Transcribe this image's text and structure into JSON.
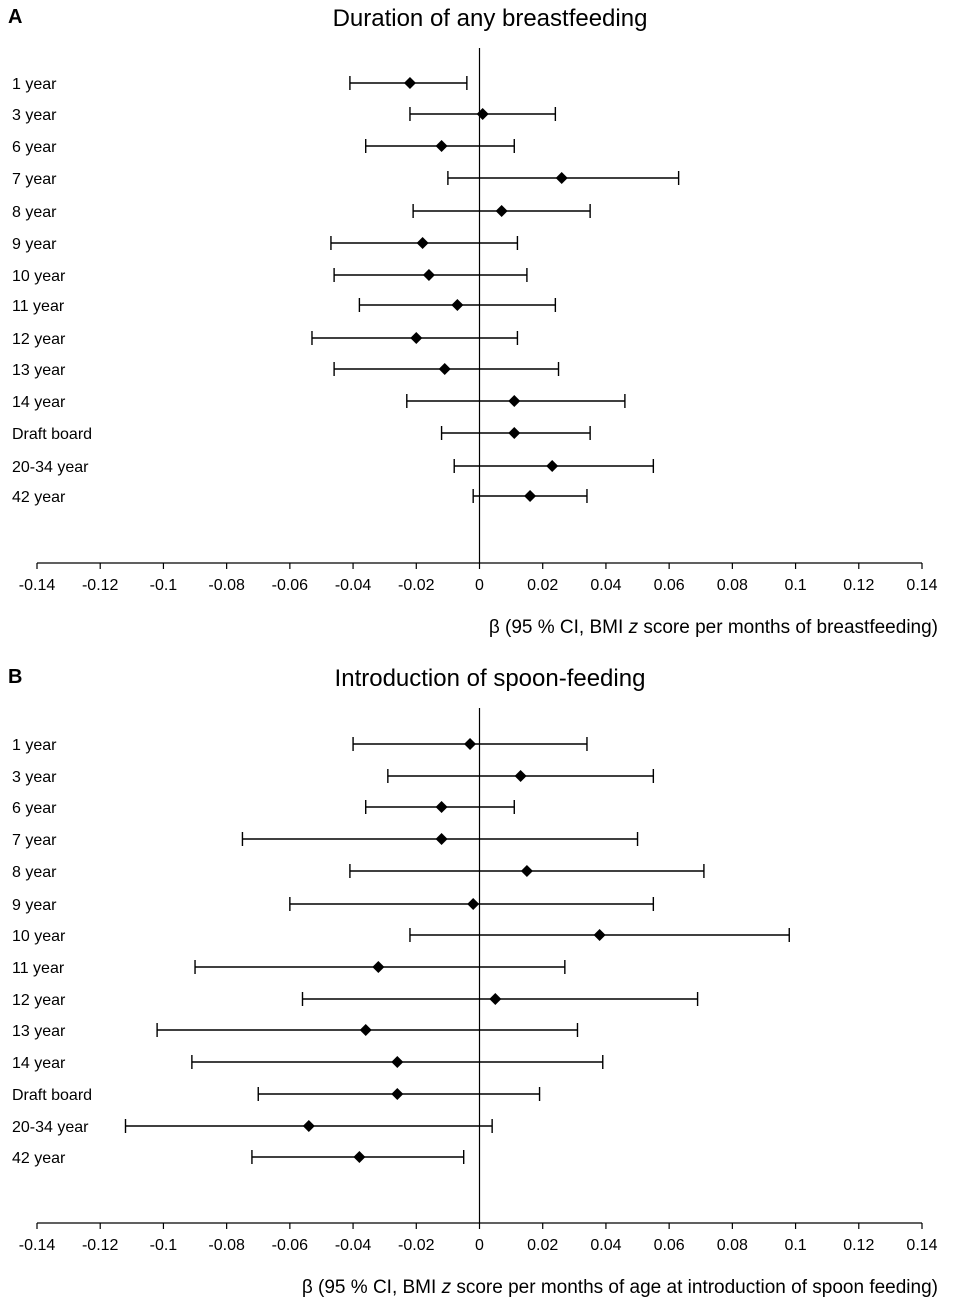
{
  "chart_data": [
    {
      "type": "forest",
      "panel": "A",
      "title": "Duration of any breastfeeding",
      "xlabel_parts": [
        "β (95 % CI, BMI ",
        "z",
        " score per months of breastfeeding)"
      ],
      "xlim": [
        -0.14,
        0.14
      ],
      "xticks": [
        "-0.14",
        "-0.12",
        "-0.1",
        "-0.08",
        "-0.06",
        "-0.04",
        "-0.02",
        "0",
        "0.02",
        "0.04",
        "0.06",
        "0.08",
        "0.1",
        "0.12",
        "0.14"
      ],
      "reference_line": 0,
      "rows": [
        {
          "label": "1 year",
          "estimate": -0.022,
          "lower": -0.041,
          "upper": -0.004
        },
        {
          "label": "3 year",
          "estimate": 0.001,
          "lower": -0.022,
          "upper": 0.024
        },
        {
          "label": "6 year",
          "estimate": -0.012,
          "lower": -0.036,
          "upper": 0.011
        },
        {
          "label": "7 year",
          "estimate": 0.026,
          "lower": -0.01,
          "upper": 0.063
        },
        {
          "label": "8 year",
          "estimate": 0.007,
          "lower": -0.021,
          "upper": 0.035
        },
        {
          "label": "9 year",
          "estimate": -0.018,
          "lower": -0.047,
          "upper": 0.012
        },
        {
          "label": "10 year",
          "estimate": -0.016,
          "lower": -0.046,
          "upper": 0.015
        },
        {
          "label": "11 year",
          "estimate": -0.007,
          "lower": -0.038,
          "upper": 0.024
        },
        {
          "label": "12 year",
          "estimate": -0.02,
          "lower": -0.053,
          "upper": 0.012
        },
        {
          "label": "13 year",
          "estimate": -0.011,
          "lower": -0.046,
          "upper": 0.025
        },
        {
          "label": "14 year",
          "estimate": 0.011,
          "lower": -0.023,
          "upper": 0.046
        },
        {
          "label": "Draft board",
          "estimate": 0.011,
          "lower": -0.012,
          "upper": 0.035
        },
        {
          "label": "20-34 year",
          "estimate": 0.023,
          "lower": -0.008,
          "upper": 0.055
        },
        {
          "label": "42 year",
          "estimate": 0.016,
          "lower": -0.002,
          "upper": 0.034
        }
      ]
    },
    {
      "type": "forest",
      "panel": "B",
      "title": "Introduction of spoon-feeding",
      "xlabel_parts": [
        "β (95 % CI, BMI ",
        "z",
        " score per months of age at introduction of spoon feeding)"
      ],
      "xlim": [
        -0.14,
        0.14
      ],
      "xticks": [
        "-0.14",
        "-0.12",
        "-0.1",
        "-0.08",
        "-0.06",
        "-0.04",
        "-0.02",
        "0",
        "0.02",
        "0.04",
        "0.06",
        "0.08",
        "0.1",
        "0.12",
        "0.14"
      ],
      "reference_line": 0,
      "rows": [
        {
          "label": "1 year",
          "estimate": -0.003,
          "lower": -0.04,
          "upper": 0.034
        },
        {
          "label": "3 year",
          "estimate": 0.013,
          "lower": -0.029,
          "upper": 0.055
        },
        {
          "label": "6 year",
          "estimate": -0.012,
          "lower": -0.036,
          "upper": 0.011
        },
        {
          "label": "7 year",
          "estimate": -0.012,
          "lower": -0.075,
          "upper": 0.05
        },
        {
          "label": "8 year",
          "estimate": 0.015,
          "lower": -0.041,
          "upper": 0.071
        },
        {
          "label": "9 year",
          "estimate": -0.002,
          "lower": -0.06,
          "upper": 0.055
        },
        {
          "label": "10 year",
          "estimate": 0.038,
          "lower": -0.022,
          "upper": 0.098
        },
        {
          "label": "11 year",
          "estimate": -0.032,
          "lower": -0.09,
          "upper": 0.027
        },
        {
          "label": "12 year",
          "estimate": 0.005,
          "lower": -0.056,
          "upper": 0.069
        },
        {
          "label": "13 year",
          "estimate": -0.036,
          "lower": -0.102,
          "upper": 0.031
        },
        {
          "label": "14 year",
          "estimate": -0.026,
          "lower": -0.091,
          "upper": 0.039
        },
        {
          "label": "Draft board",
          "estimate": -0.026,
          "lower": -0.07,
          "upper": 0.019
        },
        {
          "label": "20-34 year",
          "estimate": -0.054,
          "lower": -0.112,
          "upper": 0.004
        },
        {
          "label": "42 year",
          "estimate": -0.038,
          "lower": -0.072,
          "upper": -0.005
        }
      ]
    }
  ]
}
